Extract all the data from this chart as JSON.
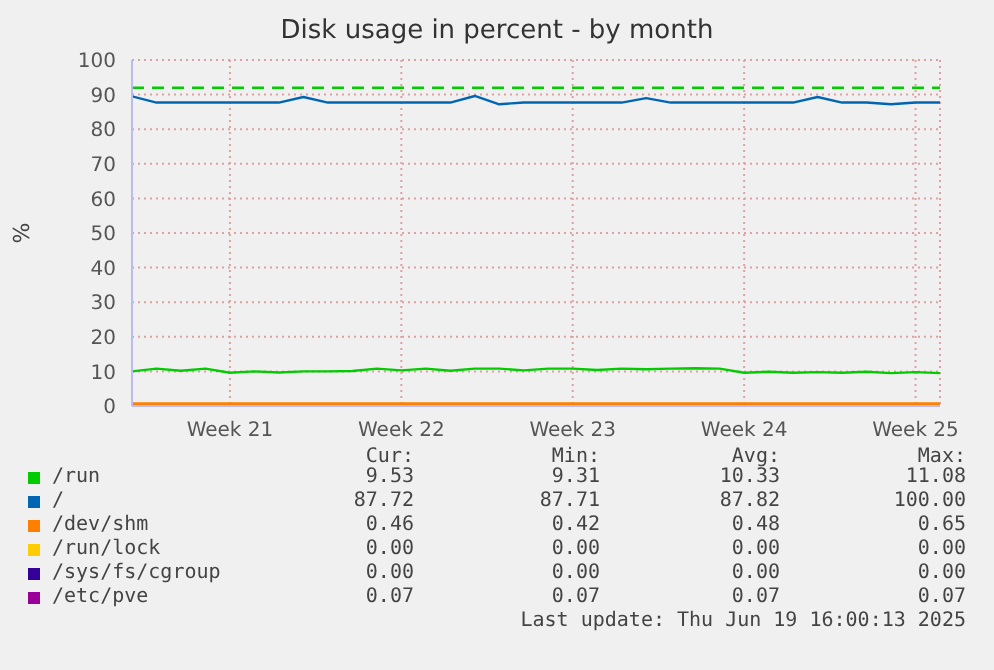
{
  "chart_data": {
    "type": "line",
    "title": "Disk usage in percent - by month",
    "ylabel": "%",
    "categories": [
      null,
      null,
      null,
      null,
      "Week 21",
      null,
      null,
      null,
      null,
      null,
      null,
      "Week 22",
      null,
      null,
      null,
      null,
      null,
      null,
      "Week 23",
      null,
      null,
      null,
      null,
      null,
      null,
      "Week 24",
      null,
      null,
      null,
      null,
      null,
      null,
      "Week 25",
      null
    ],
    "ylim": [
      0,
      100
    ],
    "yticks": [
      0,
      10,
      20,
      30,
      40,
      50,
      60,
      70,
      80,
      90,
      100
    ],
    "grid": true,
    "legend": "bottom",
    "marker": "none",
    "line_style": "solid",
    "ref_lines": [
      {
        "axis": "y",
        "value": 92,
        "color": "#00cc00",
        "line_style": "dashed"
      }
    ],
    "series": [
      {
        "name": "/run",
        "color": "#00cc00",
        "values": [
          10.0,
          10.8,
          10.2,
          10.8,
          9.6,
          10.0,
          9.7,
          10.0,
          10.0,
          10.1,
          10.8,
          10.3,
          10.8,
          10.2,
          10.8,
          10.8,
          10.3,
          10.8,
          10.8,
          10.4,
          10.8,
          10.6,
          10.8,
          10.9,
          10.8,
          9.6,
          9.9,
          9.6,
          9.8,
          9.6,
          9.9,
          9.5,
          9.8,
          9.5
        ]
      },
      {
        "name": "/",
        "color": "#0066b3",
        "values": [
          89.5,
          87.7,
          87.7,
          87.7,
          87.7,
          87.7,
          87.7,
          89.3,
          87.7,
          87.7,
          87.7,
          87.7,
          87.7,
          87.7,
          89.6,
          87.2,
          87.7,
          87.7,
          87.7,
          87.7,
          87.7,
          89.0,
          87.7,
          87.7,
          87.7,
          87.7,
          87.7,
          87.7,
          89.3,
          87.7,
          87.7,
          87.2,
          87.7,
          87.7
        ]
      },
      {
        "name": "/dev/shm",
        "color": "#ff8000",
        "values": [
          0.5,
          0.5,
          0.5,
          0.5,
          0.5,
          0.5,
          0.5,
          0.5,
          0.5,
          0.5,
          0.5,
          0.5,
          0.5,
          0.5,
          0.5,
          0.5,
          0.5,
          0.5,
          0.5,
          0.5,
          0.5,
          0.5,
          0.5,
          0.5,
          0.5,
          0.5,
          0.5,
          0.5,
          0.5,
          0.5,
          0.5,
          0.5,
          0.5,
          0.5
        ]
      },
      {
        "name": "/run/lock",
        "color": "#ffcc00",
        "values": [
          null,
          null,
          null,
          null,
          null,
          null,
          null,
          null,
          null,
          null,
          null,
          null,
          null,
          null,
          null,
          null,
          null,
          null,
          null,
          null,
          null,
          null,
          null,
          null,
          null,
          null,
          null,
          null,
          null,
          null,
          null,
          null,
          null,
          null
        ]
      },
      {
        "name": "/sys/fs/cgroup",
        "color": "#330099",
        "values": [
          null,
          null,
          null,
          null,
          null,
          null,
          null,
          null,
          null,
          null,
          null,
          null,
          null,
          null,
          null,
          null,
          null,
          null,
          null,
          null,
          null,
          null,
          null,
          null,
          null,
          null,
          null,
          null,
          null,
          null,
          null,
          null,
          null,
          null
        ]
      },
      {
        "name": "/etc/pve",
        "color": "#990099",
        "values": [
          null,
          null,
          null,
          null,
          null,
          null,
          null,
          null,
          null,
          null,
          null,
          null,
          null,
          null,
          null,
          null,
          null,
          null,
          null,
          null,
          null,
          null,
          null,
          null,
          null,
          null,
          null,
          null,
          null,
          null,
          null,
          null,
          null,
          null
        ]
      }
    ],
    "annotations": [
      "Cur:",
      "Min:",
      "Avg:",
      "Max:",
      "9.53",
      "9.31",
      "10.33",
      "11.08",
      "87.72",
      "87.71",
      "87.82",
      "100.00",
      "0.46",
      "0.42",
      "0.48",
      "0.65",
      "0.00",
      "0.00",
      "0.00",
      "0.00",
      "0.00",
      "0.00",
      "0.00",
      "0.00",
      "0.07",
      "0.07",
      "0.07",
      "0.07",
      "Last update: Thu Jun 19 16:00:13 2025"
    ]
  }
}
